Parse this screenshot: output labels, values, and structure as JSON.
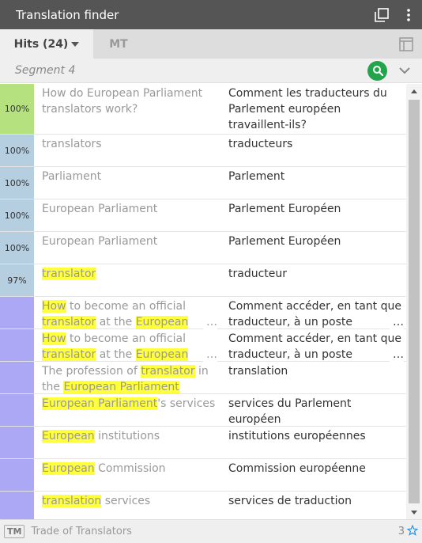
{
  "window": {
    "title": "Translation finder"
  },
  "tabs": {
    "hits_label": "Hits (24)",
    "mt_label": "MT"
  },
  "segment": {
    "label": "Segment 4"
  },
  "colors": {
    "exact": "#b5e27f",
    "fuzzy": "#b6cfe0",
    "concordance": "#aca8f5",
    "highlight": "#ffff3c",
    "search": "#22a54a"
  },
  "hits": [
    {
      "pct": "100%",
      "source": [
        {
          "t": "How do European Parliament translators work?"
        }
      ],
      "target": "Comment les traducteurs du Parlement européen travaillent-ils?"
    },
    {
      "pct": "100%",
      "source": [
        {
          "t": "translators"
        }
      ],
      "target": "traducteurs"
    },
    {
      "pct": "100%",
      "source": [
        {
          "t": "Parliament"
        }
      ],
      "target": "Parlement"
    },
    {
      "pct": "100%",
      "source": [
        {
          "t": "European Parliament"
        }
      ],
      "target": "Parlement Européen"
    },
    {
      "pct": "100%",
      "source": [
        {
          "t": "European Parliament"
        }
      ],
      "target": "Parlement Européen"
    },
    {
      "pct": "97%",
      "source": [
        {
          "t": "translator",
          "h": true
        }
      ],
      "target": "traducteur"
    },
    {
      "pct": "",
      "source": [
        {
          "t": "How",
          "h": true
        },
        {
          "t": " to become an official "
        },
        {
          "t": "translator",
          "h": true
        },
        {
          "t": " at the "
        },
        {
          "t": "European",
          "h": true
        }
      ],
      "target": "Comment accéder, en tant que traducteur, à un poste"
    },
    {
      "pct": "",
      "source": [
        {
          "t": "How",
          "h": true
        },
        {
          "t": " to become an official "
        },
        {
          "t": "translator",
          "h": true
        },
        {
          "t": " at the "
        },
        {
          "t": "European",
          "h": true
        }
      ],
      "target": "Comment accéder, en tant que traducteur, à un poste"
    },
    {
      "pct": "",
      "source": [
        {
          "t": "The profession of "
        },
        {
          "t": "translator",
          "h": true
        },
        {
          "t": " in the "
        },
        {
          "t": "European Parliament",
          "h": true
        }
      ],
      "target": "translation"
    },
    {
      "pct": "",
      "source": [
        {
          "t": "European Parliament",
          "h": true
        },
        {
          "t": "'s services"
        }
      ],
      "target": "services du Parlement européen"
    },
    {
      "pct": "",
      "source": [
        {
          "t": "European",
          "h": true
        },
        {
          "t": " institutions"
        }
      ],
      "target": "institutions européennes"
    },
    {
      "pct": "",
      "source": [
        {
          "t": "European",
          "h": true
        },
        {
          "t": " Commission"
        }
      ],
      "target": "Commission européenne"
    },
    {
      "pct": "",
      "source": [
        {
          "t": "translation",
          "h": true
        },
        {
          "t": " services"
        }
      ],
      "target": "services de traduction"
    }
  ],
  "ellipsis": "…",
  "footer": {
    "badge": "TM",
    "resource": "Trade of Translators",
    "count": "3"
  }
}
